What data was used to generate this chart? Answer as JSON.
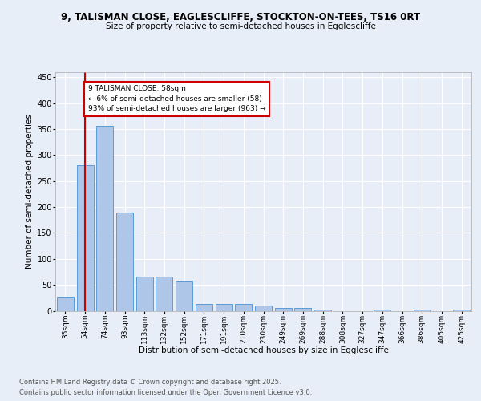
{
  "title1": "9, TALISMAN CLOSE, EAGLESCLIFFE, STOCKTON-ON-TEES, TS16 0RT",
  "title2": "Size of property relative to semi-detached houses in Egglescliffe",
  "xlabel": "Distribution of semi-detached houses by size in Egglescliffe",
  "ylabel": "Number of semi-detached properties",
  "categories": [
    "35sqm",
    "54sqm",
    "74sqm",
    "93sqm",
    "113sqm",
    "132sqm",
    "152sqm",
    "171sqm",
    "191sqm",
    "210sqm",
    "230sqm",
    "249sqm",
    "269sqm",
    "288sqm",
    "308sqm",
    "327sqm",
    "347sqm",
    "366sqm",
    "386sqm",
    "405sqm",
    "425sqm"
  ],
  "values": [
    27,
    280,
    357,
    190,
    65,
    65,
    58,
    13,
    13,
    13,
    10,
    6,
    6,
    2,
    0,
    0,
    3,
    0,
    2,
    0,
    3
  ],
  "bar_color": "#aec6e8",
  "bar_edge_color": "#5b9bd5",
  "vline_x": 1,
  "vline_color": "#cc0000",
  "annotation_title": "9 TALISMAN CLOSE: 58sqm",
  "annotation_line1": "← 6% of semi-detached houses are smaller (58)",
  "annotation_line2": "93% of semi-detached houses are larger (963) →",
  "annotation_box_color": "#cc0000",
  "ylim": [
    0,
    460
  ],
  "yticks": [
    0,
    50,
    100,
    150,
    200,
    250,
    300,
    350,
    400,
    450
  ],
  "footer1": "Contains HM Land Registry data © Crown copyright and database right 2025.",
  "footer2": "Contains public sector information licensed under the Open Government Licence v3.0.",
  "bg_color": "#e8eef7",
  "plot_bg_color": "#e8eef7"
}
